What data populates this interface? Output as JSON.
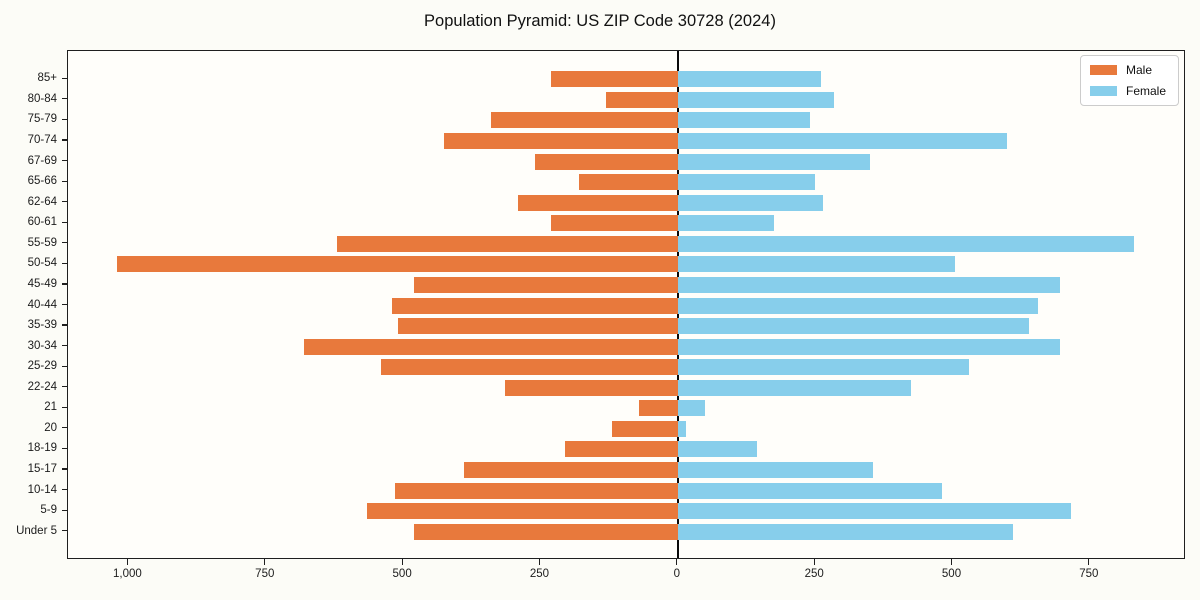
{
  "title": "Population Pyramid: US ZIP Code 30728 (2024)",
  "colors": {
    "male": "#E8793C",
    "female": "#87CEEB",
    "axis": "#1f1f1f",
    "zero_line": "#0a0a0a",
    "legend_border": "#cccccc"
  },
  "chart_data": {
    "type": "bar",
    "subtype": "population-pyramid",
    "title": "Population Pyramid: US ZIP Code 30728 (2024)",
    "categories": [
      "85+",
      "80-84",
      "75-79",
      "70-74",
      "67-69",
      "65-66",
      "62-64",
      "60-61",
      "55-59",
      "50-54",
      "45-49",
      "40-44",
      "35-39",
      "30-34",
      "25-29",
      "22-24",
      "21",
      "20",
      "18-19",
      "15-17",
      "10-14",
      "5-9",
      "Under 5"
    ],
    "series": [
      {
        "name": "Male",
        "direction": "left",
        "color": "#E8793C",
        "values": [
          230,
          130,
          340,
          425,
          260,
          180,
          290,
          230,
          620,
          1020,
          480,
          520,
          510,
          680,
          540,
          315,
          70,
          120,
          205,
          390,
          515,
          565,
          480
        ]
      },
      {
        "name": "Female",
        "direction": "right",
        "color": "#87CEEB",
        "values": [
          260,
          285,
          240,
          600,
          350,
          250,
          265,
          175,
          830,
          505,
          695,
          655,
          640,
          695,
          530,
          425,
          50,
          15,
          145,
          355,
          480,
          715,
          610
        ]
      }
    ],
    "xlim": [
      -1110,
      925
    ],
    "x_tick_values": [
      -1000,
      -750,
      -500,
      -250,
      0,
      250,
      500,
      750
    ],
    "x_tick_labels": [
      "1,000",
      "750",
      "500",
      "250",
      "0",
      "250",
      "500",
      "750"
    ],
    "ylabel": "",
    "xlabel": "",
    "grid": false,
    "legend_position": "upper right",
    "zero_axis_line": true
  }
}
